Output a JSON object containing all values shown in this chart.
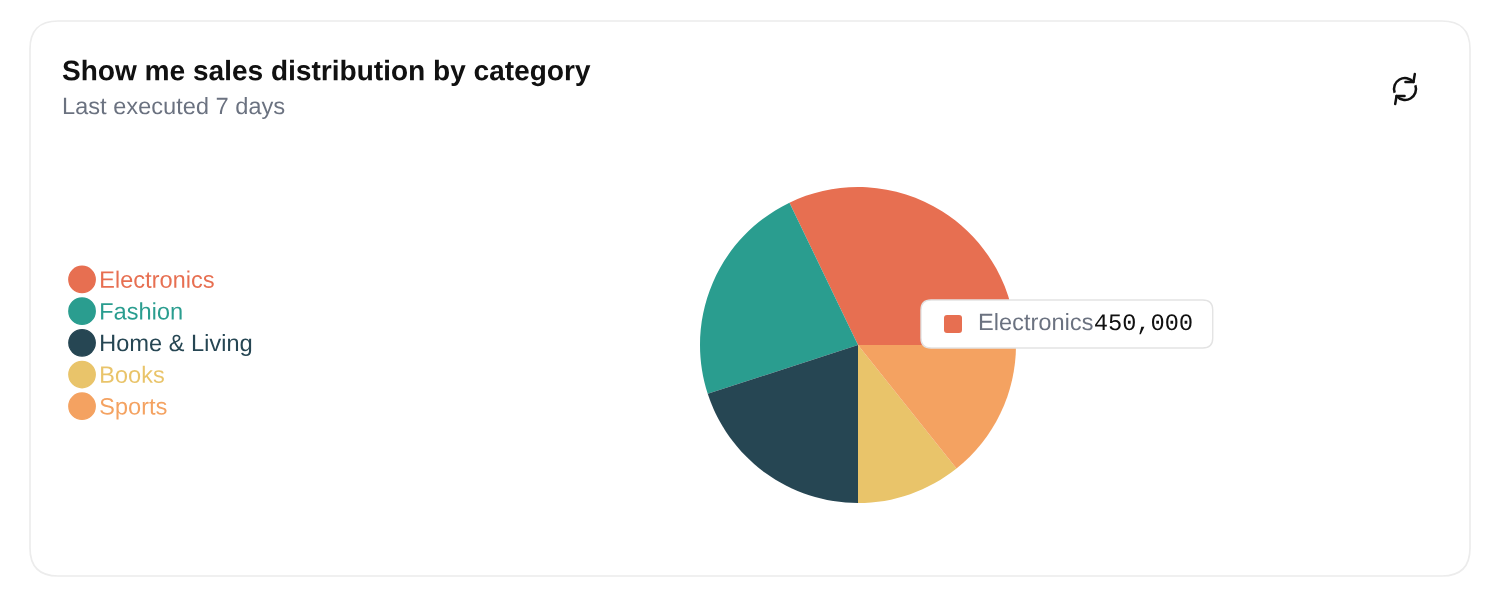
{
  "chart_data": {
    "type": "pie",
    "title": "Show me sales distribution by category",
    "subtitle": "Last executed 7 days",
    "categories": [
      "Electronics",
      "Fashion",
      "Home & Living",
      "Books",
      "Sports"
    ],
    "values": [
      450000,
      320000,
      280000,
      150000,
      200000
    ],
    "colors": [
      "#e76f51",
      "#2a9d8f",
      "#264653",
      "#e9c46a",
      "#f4a261"
    ],
    "value_labels": [
      "450,000",
      null,
      null,
      null,
      null
    ],
    "legend": "left"
  }
}
